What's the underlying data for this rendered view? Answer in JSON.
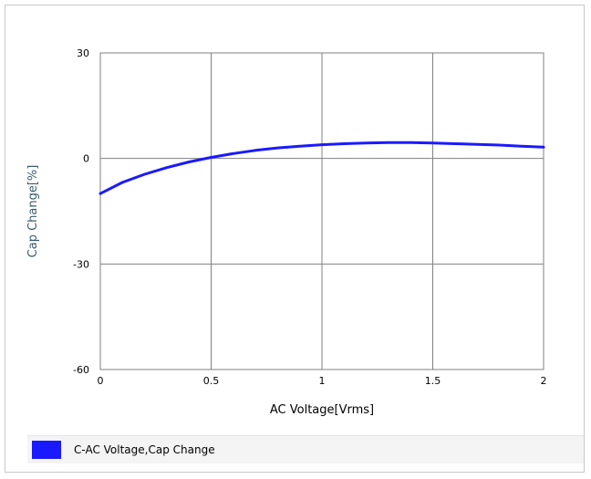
{
  "chart_data": {
    "type": "line",
    "title": "",
    "xlabel": "AC Voltage[Vrms]",
    "ylabel": "Cap Change[%]",
    "xlim": [
      0,
      2
    ],
    "ylim": [
      -60,
      30
    ],
    "x_ticks": [
      0,
      0.5,
      1,
      1.5,
      2
    ],
    "x_tick_labels": [
      "0",
      "0.5",
      "1",
      "1.5",
      "2"
    ],
    "y_ticks": [
      30,
      0,
      -30,
      -60
    ],
    "y_tick_labels": [
      "30",
      "0",
      "-30",
      "-60"
    ],
    "grid": true,
    "legend_position": "bottom",
    "series": [
      {
        "name": "C-AC Voltage,Cap Change",
        "color": "#1a1aff",
        "x": [
          0,
          0.1,
          0.2,
          0.3,
          0.4,
          0.5,
          0.6,
          0.7,
          0.8,
          0.9,
          1.0,
          1.1,
          1.2,
          1.3,
          1.4,
          1.5,
          1.6,
          1.7,
          1.8,
          1.9,
          2.0
        ],
        "y": [
          -10,
          -6.8,
          -4.5,
          -2.6,
          -1.0,
          0.3,
          1.4,
          2.3,
          3.0,
          3.5,
          3.9,
          4.2,
          4.4,
          4.5,
          4.5,
          4.4,
          4.2,
          4.0,
          3.8,
          3.5,
          3.2
        ]
      }
    ]
  }
}
